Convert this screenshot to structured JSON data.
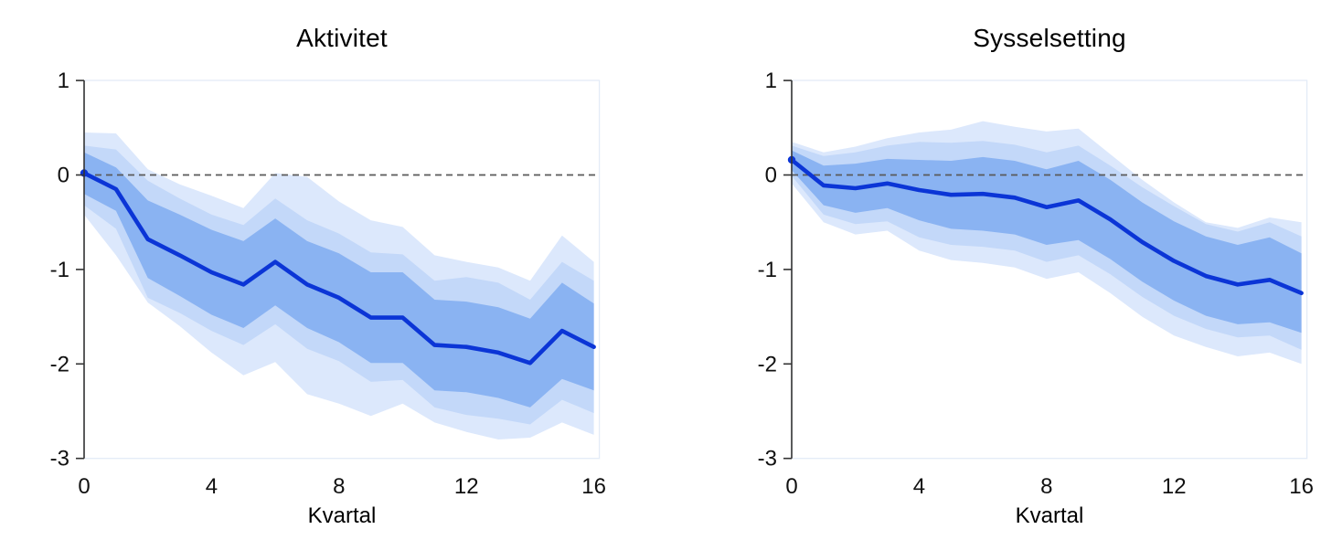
{
  "figure": {
    "background": "#ffffff",
    "panel_count": 2
  },
  "chart_data": [
    {
      "type": "line",
      "title": "Aktivitet",
      "xlabel": "Kvartal",
      "ylabel": "",
      "x_ticks": [
        0,
        4,
        8,
        12,
        16
      ],
      "y_ticks": [
        1,
        0,
        -1,
        -2,
        -3
      ],
      "xlim": [
        0,
        16
      ],
      "ylim": [
        -3,
        1
      ],
      "zero_line": true,
      "x": [
        0,
        1,
        2,
        3,
        4,
        5,
        6,
        7,
        8,
        9,
        10,
        11,
        12,
        13,
        14,
        15,
        16
      ],
      "line": [
        0.02,
        -0.15,
        -0.68,
        -0.85,
        -1.03,
        -1.16,
        -0.92,
        -1.16,
        -1.3,
        -1.51,
        -1.51,
        -1.8,
        -1.82,
        -1.88,
        -1.99,
        -1.65,
        -1.82
      ],
      "bands": {
        "inner": {
          "upper": [
            0.24,
            0.08,
            -0.27,
            -0.42,
            -0.58,
            -0.7,
            -0.46,
            -0.7,
            -0.83,
            -1.03,
            -1.03,
            -1.32,
            -1.34,
            -1.4,
            -1.52,
            -1.14,
            -1.36
          ],
          "lower": [
            -0.2,
            -0.38,
            -1.09,
            -1.28,
            -1.48,
            -1.62,
            -1.38,
            -1.62,
            -1.77,
            -1.99,
            -1.99,
            -2.28,
            -2.3,
            -2.36,
            -2.46,
            -2.16,
            -2.28
          ]
        },
        "middle": {
          "upper": [
            0.31,
            0.27,
            -0.06,
            -0.25,
            -0.42,
            -0.53,
            -0.25,
            -0.48,
            -0.62,
            -0.82,
            -0.84,
            -1.12,
            -1.08,
            -1.14,
            -1.32,
            -0.92,
            -1.12
          ],
          "lower": [
            -0.32,
            -0.57,
            -1.3,
            -1.46,
            -1.65,
            -1.8,
            -1.58,
            -1.84,
            -1.97,
            -2.19,
            -2.17,
            -2.46,
            -2.54,
            -2.58,
            -2.64,
            -2.38,
            -2.52
          ]
        },
        "outer": {
          "upper": [
            0.45,
            0.44,
            0.06,
            -0.1,
            -0.22,
            -0.35,
            0.02,
            -0.02,
            -0.28,
            -0.48,
            -0.55,
            -0.85,
            -0.92,
            -0.98,
            -1.12,
            -0.64,
            -0.92
          ],
          "lower": [
            -0.42,
            -0.85,
            -1.35,
            -1.6,
            -1.88,
            -2.12,
            -1.98,
            -2.32,
            -2.42,
            -2.55,
            -2.42,
            -2.62,
            -2.72,
            -2.8,
            -2.78,
            -2.62,
            -2.75
          ]
        }
      }
    },
    {
      "type": "line",
      "title": "Sysselsetting",
      "xlabel": "Kvartal",
      "ylabel": "",
      "x_ticks": [
        0,
        4,
        8,
        12,
        16
      ],
      "y_ticks": [
        1,
        0,
        -1,
        -2,
        -3
      ],
      "xlim": [
        0,
        16
      ],
      "ylim": [
        -3,
        1
      ],
      "zero_line": true,
      "x": [
        0,
        1,
        2,
        3,
        4,
        5,
        6,
        7,
        8,
        9,
        10,
        11,
        12,
        13,
        14,
        15,
        16
      ],
      "line": [
        0.16,
        -0.11,
        -0.14,
        -0.09,
        -0.16,
        -0.21,
        -0.2,
        -0.24,
        -0.34,
        -0.27,
        -0.47,
        -0.71,
        -0.91,
        -1.07,
        -1.16,
        -1.11,
        -1.25
      ],
      "bands": {
        "inner": {
          "upper": [
            0.26,
            0.1,
            0.12,
            0.17,
            0.16,
            0.15,
            0.19,
            0.15,
            0.06,
            0.15,
            -0.05,
            -0.29,
            -0.49,
            -0.65,
            -0.74,
            -0.66,
            -0.83
          ],
          "lower": [
            0.05,
            -0.32,
            -0.4,
            -0.35,
            -0.48,
            -0.57,
            -0.59,
            -0.63,
            -0.74,
            -0.69,
            -0.89,
            -1.13,
            -1.33,
            -1.49,
            -1.58,
            -1.56,
            -1.67
          ]
        },
        "middle": {
          "upper": [
            0.31,
            0.2,
            0.24,
            0.31,
            0.35,
            0.34,
            0.36,
            0.32,
            0.24,
            0.31,
            0.1,
            -0.13,
            -0.33,
            -0.52,
            -0.6,
            -0.5,
            -0.65
          ],
          "lower": [
            -0.01,
            -0.42,
            -0.52,
            -0.49,
            -0.66,
            -0.74,
            -0.76,
            -0.8,
            -0.92,
            -0.85,
            -1.05,
            -1.29,
            -1.49,
            -1.63,
            -1.72,
            -1.7,
            -1.85
          ]
        },
        "outer": {
          "upper": [
            0.35,
            0.24,
            0.3,
            0.39,
            0.45,
            0.48,
            0.57,
            0.51,
            0.46,
            0.49,
            0.22,
            -0.05,
            -0.29,
            -0.5,
            -0.56,
            -0.45,
            -0.5
          ],
          "lower": [
            -0.09,
            -0.5,
            -0.63,
            -0.59,
            -0.8,
            -0.9,
            -0.93,
            -0.98,
            -1.1,
            -1.03,
            -1.25,
            -1.5,
            -1.7,
            -1.82,
            -1.92,
            -1.88,
            -2.0
          ]
        }
      }
    }
  ],
  "style": {
    "line_color": "#0b35d6",
    "band_inner_color": "#8ab3f2",
    "band_middle_color": "#c3d8f9",
    "band_outer_color": "#dce8fc",
    "zero_line_color": "#5a5a5a",
    "axis_color": "#333333",
    "frame_color": "#e3ebf7",
    "text_color": "#111111"
  }
}
